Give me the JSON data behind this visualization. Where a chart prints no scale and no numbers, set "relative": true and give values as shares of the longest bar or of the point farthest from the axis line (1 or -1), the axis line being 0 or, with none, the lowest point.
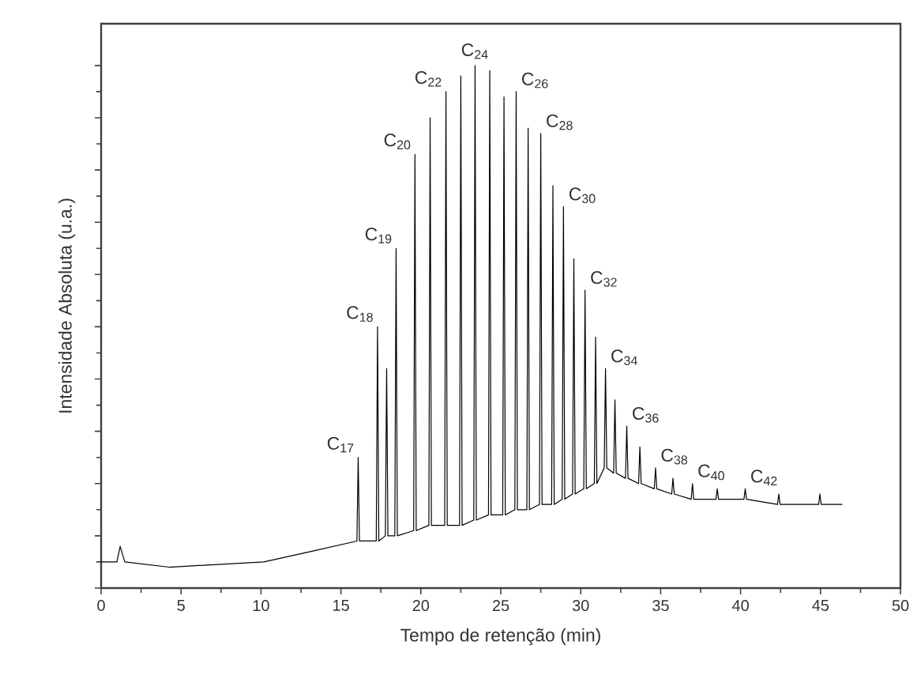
{
  "chart_data": {
    "type": "line",
    "relative": true,
    "xlabel": "Tempo de retenção (min)",
    "ylabel": "Intensidade Absoluta (u.a.)",
    "xlim": [
      0,
      50
    ],
    "xticks": [
      0,
      5,
      10,
      15,
      20,
      25,
      30,
      35,
      40,
      45,
      50
    ],
    "color": "#000000",
    "x": [
      0,
      0.99,
      1.19,
      1.48,
      4.25,
      10.18,
      13.14,
      16.0,
      16.08,
      16.16,
      17.21,
      17.29,
      17.37,
      17.78,
      17.86,
      17.94,
      18.37,
      18.45,
      18.53,
      19.55,
      19.63,
      19.71,
      20.5,
      20.58,
      20.66,
      21.49,
      21.57,
      21.65,
      22.42,
      22.5,
      22.58,
      23.31,
      23.39,
      23.47,
      24.23,
      24.31,
      24.39,
      25.12,
      25.2,
      25.28,
      25.88,
      25.96,
      26.04,
      26.63,
      26.71,
      26.79,
      27.42,
      27.5,
      27.58,
      28.18,
      28.26,
      28.34,
      28.84,
      28.92,
      29.0,
      29.49,
      29.57,
      29.65,
      30.19,
      30.27,
      30.35,
      30.85,
      30.93,
      31.01,
      31.47,
      31.55,
      31.63,
      32.06,
      32.14,
      32.22,
      32.8,
      32.88,
      32.96,
      33.62,
      33.7,
      33.78,
      34.6,
      34.68,
      34.76,
      35.69,
      35.77,
      35.85,
      36.91,
      36.99,
      37.07,
      38.46,
      38.54,
      38.62,
      40.21,
      40.29,
      40.37,
      42.31,
      42.39,
      42.47,
      44.88,
      44.96,
      45.04,
      46.34
    ],
    "values": [
      0.05,
      0.05,
      0.08,
      0.05,
      0.04,
      0.05,
      0.07,
      0.09,
      0.25,
      0.09,
      0.09,
      0.5,
      0.09,
      0.1,
      0.42,
      0.1,
      0.1,
      0.65,
      0.1,
      0.11,
      0.83,
      0.11,
      0.12,
      0.9,
      0.12,
      0.12,
      0.95,
      0.12,
      0.12,
      0.98,
      0.12,
      0.13,
      1.0,
      0.13,
      0.14,
      0.99,
      0.14,
      0.14,
      0.94,
      0.14,
      0.15,
      0.95,
      0.15,
      0.15,
      0.88,
      0.15,
      0.16,
      0.87,
      0.16,
      0.16,
      0.77,
      0.16,
      0.17,
      0.73,
      0.17,
      0.18,
      0.63,
      0.18,
      0.19,
      0.57,
      0.19,
      0.2,
      0.48,
      0.2,
      0.23,
      0.42,
      0.23,
      0.22,
      0.36,
      0.22,
      0.21,
      0.31,
      0.21,
      0.2,
      0.27,
      0.2,
      0.19,
      0.23,
      0.19,
      0.18,
      0.21,
      0.18,
      0.17,
      0.2,
      0.17,
      0.17,
      0.19,
      0.17,
      0.17,
      0.19,
      0.17,
      0.16,
      0.18,
      0.16,
      0.16,
      0.18,
      0.16,
      0.16
    ],
    "annotations": [
      {
        "text": "C$_{17}$",
        "x": 16.08,
        "y": 0.25
      },
      {
        "text": "C$_{18}$",
        "x": 17.29,
        "y": 0.5
      },
      {
        "text": "C$_{19}$",
        "x": 18.45,
        "y": 0.65
      },
      {
        "text": "C$_{20}$",
        "x": 19.63,
        "y": 0.83
      },
      {
        "text": "C$_{22}$",
        "x": 21.57,
        "y": 0.95
      },
      {
        "text": "C$_{24}$",
        "x": 23.39,
        "y": 1.0
      },
      {
        "text": "C$_{26}$",
        "x": 25.96,
        "y": 0.95
      },
      {
        "text": "C$_{28}$",
        "x": 27.5,
        "y": 0.87
      },
      {
        "text": "C$_{30}$",
        "x": 28.92,
        "y": 0.73
      },
      {
        "text": "C$_{32}$",
        "x": 30.27,
        "y": 0.57
      },
      {
        "text": "C$_{34}$",
        "x": 31.55,
        "y": 0.42
      },
      {
        "text": "C$_{36}$",
        "x": 32.88,
        "y": 0.31
      },
      {
        "text": "C$_{38}$",
        "x": 34.68,
        "y": 0.23
      },
      {
        "text": "C$_{40}$",
        "x": 36.99,
        "y": 0.2
      },
      {
        "text": "C$_{42}$",
        "x": 40.29,
        "y": 0.19
      }
    ]
  }
}
